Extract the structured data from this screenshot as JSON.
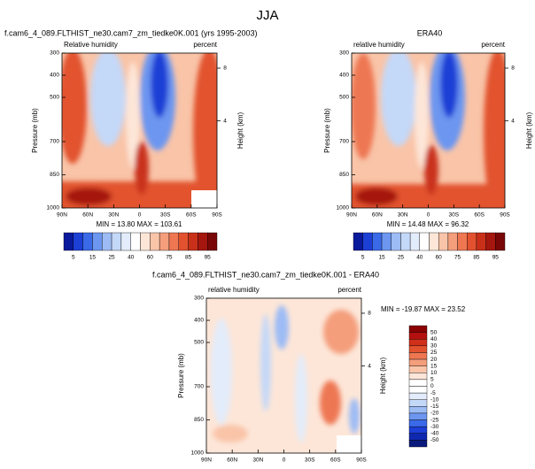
{
  "figure_title": "JJA",
  "chart_data": [
    {
      "type": "contour",
      "title": "f.cam6_4_089.FLTHIST_ne30.cam7_zm_tiedke0K.001 (yrs 1995-2003)",
      "left_label": "Relative humidity",
      "right_label": "percent",
      "ylabel": "Pressure (mb)",
      "y2label": "Height (km)",
      "xlim": [
        90,
        -90
      ],
      "xticks": [
        {
          "value": 90,
          "label": "90N"
        },
        {
          "value": 60,
          "label": "60N"
        },
        {
          "value": 30,
          "label": "30N"
        },
        0,
        {
          "value": -30,
          "label": "30S"
        },
        {
          "value": -60,
          "label": "60S"
        },
        {
          "value": -90,
          "label": "90S"
        }
      ],
      "ylim": [
        1000,
        300
      ],
      "yticks": [
        300,
        400,
        500,
        700,
        850,
        1000
      ],
      "y2ticks": [
        8,
        4
      ],
      "annotation": "MIN = 13.80  MAX = 103.61",
      "colorbar": {
        "colors": [
          "#0a1a9c",
          "#1c3fd6",
          "#3a6ae8",
          "#6c96f0",
          "#9dbcf5",
          "#c4d8f8",
          "#e3ecfa",
          "#ffffff",
          "#fde6d8",
          "#f9c4a8",
          "#f49e7c",
          "#ee7752",
          "#e2522f",
          "#c9301a",
          "#a5170e",
          "#7a0707"
        ],
        "ticks": [
          5,
          15,
          25,
          40,
          60,
          75,
          85,
          95
        ]
      }
    },
    {
      "type": "contour",
      "title": "ERA40",
      "left_label": "relative humidity",
      "right_label": "percent",
      "ylabel": "Pressure (mb)",
      "y2label": "Height (km)",
      "xlim": [
        90,
        -90
      ],
      "xticks": [
        {
          "value": 90,
          "label": "90N"
        },
        {
          "value": 60,
          "label": "60N"
        },
        {
          "value": 30,
          "label": "30N"
        },
        0,
        {
          "value": -30,
          "label": "30S"
        },
        {
          "value": -60,
          "label": "60S"
        },
        {
          "value": -90,
          "label": "90S"
        }
      ],
      "ylim": [
        1000,
        300
      ],
      "yticks": [
        300,
        400,
        500,
        700,
        850,
        1000
      ],
      "y2ticks": [
        8,
        4
      ],
      "annotation": "MIN = 14.48  MAX = 96.32",
      "colorbar": {
        "colors": [
          "#0a1a9c",
          "#1c3fd6",
          "#3a6ae8",
          "#6c96f0",
          "#9dbcf5",
          "#c4d8f8",
          "#e3ecfa",
          "#ffffff",
          "#fde6d8",
          "#f9c4a8",
          "#f49e7c",
          "#ee7752",
          "#e2522f",
          "#c9301a",
          "#a5170e",
          "#7a0707"
        ],
        "ticks": [
          5,
          15,
          25,
          40,
          60,
          75,
          85,
          95
        ]
      }
    },
    {
      "type": "contour",
      "title": "f.cam6_4_089.FLTHIST_ne30.cam7_zm_tiedke0K.001 - ERA40",
      "left_label": "relative humidity",
      "right_label": "percent",
      "ylabel": "Pressure (mb)",
      "y2label": "Height (km)",
      "xlim": [
        90,
        -90
      ],
      "xticks": [
        {
          "value": 90,
          "label": "90N"
        },
        {
          "value": 60,
          "label": "60N"
        },
        {
          "value": 30,
          "label": "30N"
        },
        0,
        {
          "value": -30,
          "label": "30S"
        },
        {
          "value": -60,
          "label": "60S"
        },
        {
          "value": -90,
          "label": "90S"
        }
      ],
      "ylim": [
        1000,
        300
      ],
      "yticks": [
        300,
        400,
        500,
        700,
        850,
        1000
      ],
      "y2ticks": [
        8,
        4
      ],
      "annotation": "MIN = -19.87  MAX = 23.52",
      "colorbar": {
        "colors": [
          "#8a0000",
          "#b51010",
          "#d0301a",
          "#e2522f",
          "#ee7752",
          "#f49e7c",
          "#f9c4a8",
          "#fde6d8",
          "#ffffff",
          "#ffffff",
          "#e3ecfa",
          "#c4d8f8",
          "#9dbcf5",
          "#6c96f0",
          "#3a6ae8",
          "#1c3fd6",
          "#0f28b0",
          "#0a1a7c"
        ],
        "ticks": [
          50,
          40,
          30,
          25,
          20,
          15,
          10,
          5,
          0,
          -5,
          -10,
          -15,
          -20,
          -25,
          -30,
          -40,
          -50
        ]
      }
    }
  ]
}
